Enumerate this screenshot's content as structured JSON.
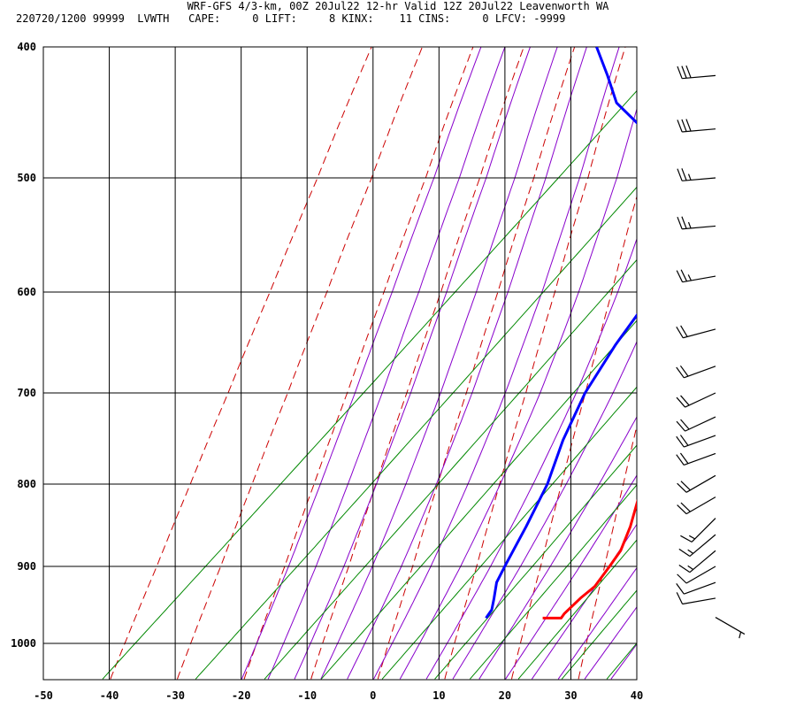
{
  "header": {
    "title": "WRF-GFS 4/3-km, 00Z 20Jul22 12-hr Valid 12Z 20Jul22 Leavenworth WA",
    "subtitle": "220720/1200 99999  LVWTH   CAPE:     0 LIFT:     8 KINX:    11 CINS:     0 LFCV: -9999"
  },
  "colors": {
    "temperature": "#ff0000",
    "dewpoint": "#0000ff",
    "dry_adiabat": "#cc0000",
    "moist_adiabat": "#8800cc",
    "mixing_ratio": "#008800",
    "grid": "#000000",
    "wind": "#000000"
  },
  "chart_data": {
    "type": "line",
    "title": "",
    "xlabel": "",
    "ylabel": "",
    "x_axis": "temperature (C), skewed",
    "y_axis": "pressure (hPa), log scale, inverted",
    "xlim": [
      -50,
      40
    ],
    "ylim": [
      1040,
      400
    ],
    "x_ticks": [
      -50,
      -40,
      -30,
      -20,
      -10,
      0,
      10,
      20,
      30,
      40
    ],
    "y_ticks": [
      400,
      500,
      600,
      700,
      800,
      900,
      1000
    ],
    "grid": true,
    "series": [
      {
        "color": "#ff0000",
        "pressure": [
          966,
          966,
          960,
          940,
          925,
          900,
          880,
          850,
          800,
          750,
          700,
          650,
          620,
          600,
          550,
          500,
          450,
          400
        ],
        "values": [
          16.4,
          19.2,
          19.0,
          19.1,
          19.5,
          18.7,
          18.0,
          15.8,
          11.2,
          7.2,
          3.5,
          -0.7,
          -3.2,
          -5.3,
          -10.0,
          -15.0,
          -20.8,
          -27.3
        ]
      },
      {
        "color": "#0000ff",
        "pressure": [
          966,
          955,
          940,
          920,
          900,
          850,
          800,
          750,
          700,
          650,
          620,
          600,
          570,
          550,
          520,
          500,
          480,
          460,
          440,
          420,
          400
        ],
        "values": [
          7.8,
          7.4,
          6.0,
          4.0,
          2.8,
          0.0,
          -3.2,
          -7.5,
          -11.3,
          -14.0,
          -15.3,
          -17.5,
          -19.5,
          -22.0,
          -27.0,
          -31.5,
          -37.0,
          -42.5,
          -50.5,
          -56.0,
          -62.0
        ]
      }
    ],
    "winds": [
      {
        "pressure": 965,
        "speed_kt": 5,
        "direction": 120
      },
      {
        "pressure": 940,
        "speed_kt": 10,
        "direction": 260
      },
      {
        "pressure": 920,
        "speed_kt": 10,
        "direction": 250
      },
      {
        "pressure": 900,
        "speed_kt": 10,
        "direction": 240
      },
      {
        "pressure": 880,
        "speed_kt": 15,
        "direction": 230
      },
      {
        "pressure": 860,
        "speed_kt": 15,
        "direction": 230
      },
      {
        "pressure": 840,
        "speed_kt": 15,
        "direction": 225
      },
      {
        "pressure": 815,
        "speed_kt": 20,
        "direction": 240
      },
      {
        "pressure": 790,
        "speed_kt": 20,
        "direction": 240
      },
      {
        "pressure": 765,
        "speed_kt": 20,
        "direction": 250
      },
      {
        "pressure": 745,
        "speed_kt": 20,
        "direction": 250
      },
      {
        "pressure": 725,
        "speed_kt": 20,
        "direction": 245
      },
      {
        "pressure": 700,
        "speed_kt": 20,
        "direction": 245
      },
      {
        "pressure": 672,
        "speed_kt": 20,
        "direction": 250
      },
      {
        "pressure": 635,
        "speed_kt": 20,
        "direction": 255
      },
      {
        "pressure": 585,
        "speed_kt": 25,
        "direction": 260
      },
      {
        "pressure": 540,
        "speed_kt": 25,
        "direction": 265
      },
      {
        "pressure": 500,
        "speed_kt": 25,
        "direction": 265
      },
      {
        "pressure": 460,
        "speed_kt": 30,
        "direction": 265
      },
      {
        "pressure": 420,
        "speed_kt": 30,
        "direction": 265
      }
    ]
  }
}
